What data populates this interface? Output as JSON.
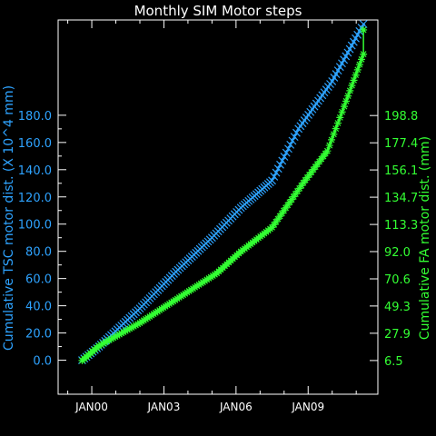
{
  "chart_data": {
    "type": "line",
    "title": "Monthly SIM Motor steps",
    "x_ticks": [
      "JAN00",
      "JAN03",
      "JAN06",
      "JAN09"
    ],
    "x_tick_years": [
      2000,
      2003,
      2006,
      2009
    ],
    "xlim": [
      1998.6,
      2011.9
    ],
    "left_axis": {
      "label": "Cumulative TSC motor dist. (X 10^4 mm)",
      "ticks": [
        "0.0",
        "20.0",
        "40.0",
        "60.0",
        "80.0",
        "100.0",
        "120.0",
        "140.0",
        "160.0",
        "180.0"
      ],
      "ylim": [
        -25,
        250
      ]
    },
    "right_axis": {
      "label": "Cumulative FA motor dist. (mm)",
      "ticks": [
        "6.5",
        "27.9",
        "49.3",
        "70.6",
        "92.0",
        "113.3",
        "134.7",
        "156.1",
        "177.4",
        "198.8"
      ],
      "ylim": [
        -19.95,
        273.8
      ]
    },
    "series": [
      {
        "color": "#2ea3ff",
        "marker": "x",
        "axis": "left",
        "points": [
          [
            1999.6,
            0
          ],
          [
            2000.3,
            10
          ],
          [
            2002.0,
            38
          ],
          [
            2003.5,
            65
          ],
          [
            2005.0,
            90
          ],
          [
            2006.2,
            112
          ],
          [
            2007.5,
            132
          ],
          [
            2008.6,
            170
          ],
          [
            2010.0,
            205
          ],
          [
            2011.3,
            247
          ]
        ]
      },
      {
        "color": "#33ff33",
        "marker": "*",
        "axis": "right",
        "points": [
          [
            1999.6,
            6.5
          ],
          [
            2000.3,
            18
          ],
          [
            2002.0,
            36
          ],
          [
            2003.8,
            58
          ],
          [
            2005.2,
            75
          ],
          [
            2006.2,
            92
          ],
          [
            2007.5,
            111
          ],
          [
            2008.8,
            146
          ],
          [
            2009.8,
            171
          ],
          [
            2010.5,
            206
          ],
          [
            2011.3,
            247
          ],
          [
            2011.3,
            266
          ]
        ]
      }
    ]
  },
  "colors": {
    "background": "#000000",
    "frame": "#ffffff",
    "tsc": "#2ea3ff",
    "fa": "#33ff33"
  }
}
